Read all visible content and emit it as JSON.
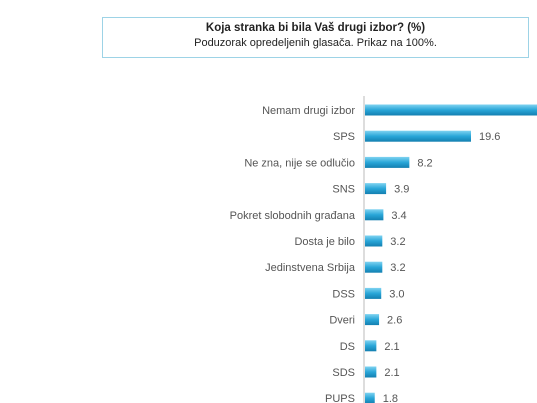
{
  "header": {
    "title": "Koja stranka bi bila Vaš drugi izbor? (%)",
    "subtitle": "Poduzorak opredeljenih glasača. Prikaz na 100%."
  },
  "chart_data": {
    "type": "bar",
    "orientation": "horizontal",
    "title": "Koja stranka bi bila Vaš drugi izbor? (%)",
    "subtitle": "Poduzorak opredeljenih glasača. Prikaz na 100%.",
    "categories": [
      "Nemam drugi izbor",
      "SPS",
      "Ne zna, nije se odlučio",
      "SNS",
      "Pokret slobodnih građana",
      "Dosta je bilo",
      "Jedinstvena Srbija",
      "DSS",
      "Dveri",
      "DS",
      "SDS",
      "PUPS"
    ],
    "values": [
      null,
      19.6,
      8.2,
      3.9,
      3.4,
      3.2,
      3.2,
      3.0,
      2.6,
      2.1,
      2.1,
      1.8
    ],
    "value_labels": [
      "",
      "19.6",
      "8.2",
      "3.9",
      "3.4",
      "3.2",
      "3.2",
      "3.0",
      "2.6",
      "2.1",
      "2.1",
      "1.8"
    ],
    "bar_color": "#29a6d8",
    "grid": false,
    "legend": "none"
  }
}
